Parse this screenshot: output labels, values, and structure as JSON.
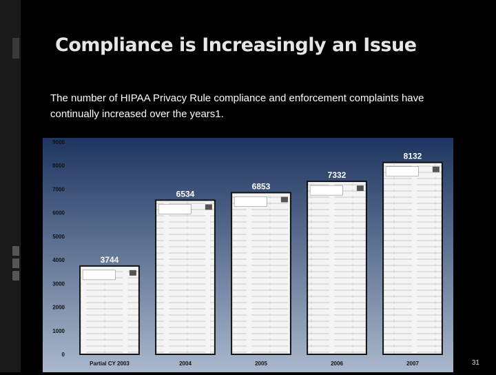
{
  "slide": {
    "title": "Compliance is Increasingly an Issue",
    "subtitle": "The number of HIPAA Privacy Rule compliance and enforcement complaints have continually increased over the years1.",
    "slide_number": "31"
  },
  "chart_data": {
    "type": "bar",
    "categories": [
      "Partial CY 2003",
      "2004",
      "2005",
      "2006",
      "2007"
    ],
    "values": [
      3744,
      6534,
      6853,
      7332,
      8132
    ],
    "ylim": [
      0,
      9000
    ],
    "yticks": [
      "0",
      "1000",
      "2000",
      "3000",
      "4000",
      "5000",
      "6000",
      "7000",
      "8000",
      "9000"
    ],
    "grid": false,
    "legend": "none",
    "colors": {
      "background_top": "#1e3560",
      "background_bottom": "#a9b8cc",
      "bar_fill": "#f4f4f4",
      "bar_border": "#111111",
      "value_label": "#ffffff",
      "tick_label": "#111111"
    }
  }
}
